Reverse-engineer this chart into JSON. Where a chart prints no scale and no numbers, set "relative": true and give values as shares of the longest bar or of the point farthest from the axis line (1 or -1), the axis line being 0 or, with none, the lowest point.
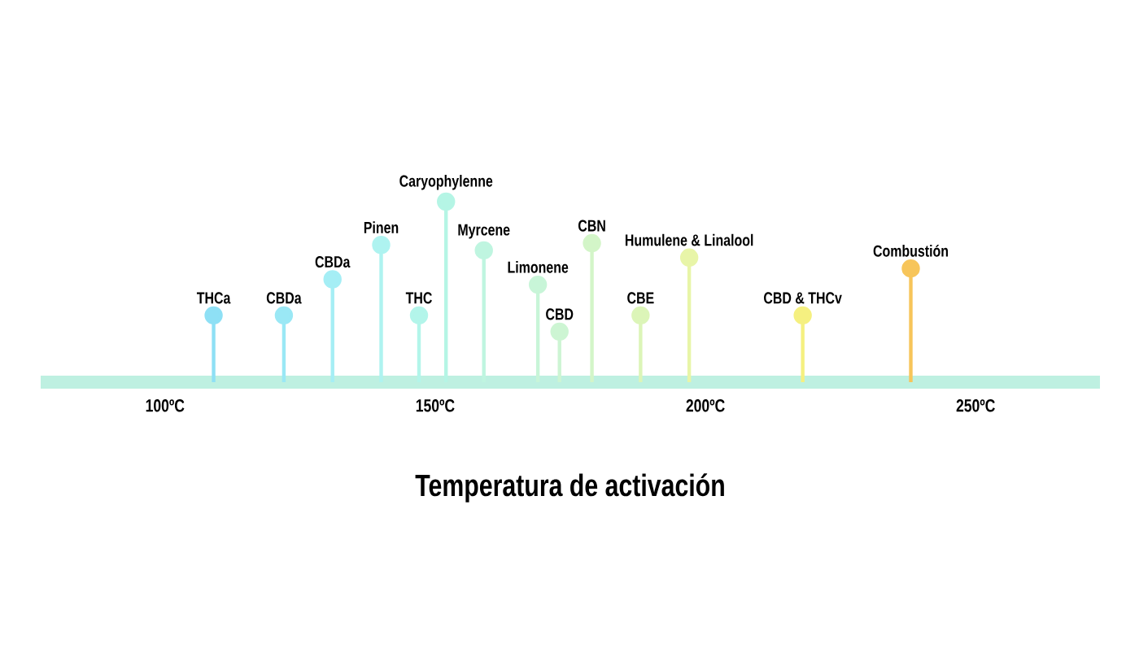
{
  "chart_data": {
    "type": "lollipop",
    "relative": true,
    "marker": "circle",
    "xlabel": "Temperatura de activación",
    "xlim": [
      77,
      273
    ],
    "xticks": [
      {
        "value": 100,
        "label": "100ºC"
      },
      {
        "value": 150,
        "label": "150ºC"
      },
      {
        "value": 200,
        "label": "200ºC"
      },
      {
        "value": 250,
        "label": "250ºC"
      }
    ],
    "x": [
      109,
      122,
      131,
      140,
      147,
      152,
      159,
      169,
      173,
      179,
      188,
      197,
      218,
      238
    ],
    "values": [
      0.37,
      0.37,
      0.57,
      0.76,
      0.37,
      1,
      0.73,
      0.54,
      0.28,
      0.77,
      0.37,
      0.69,
      0.37,
      0.63
    ],
    "colors": [
      "#8ee0f5",
      "#9ae8f5",
      "#a5eef5",
      "#aef3f0",
      "#b3f5ea",
      "#b5f5e5",
      "#bff5e0",
      "#c8f5d8",
      "#cdf5d3",
      "#d3f5c8",
      "#dcf5b8",
      "#e8f5a8",
      "#f5f080",
      "#f7c55a"
    ],
    "annotations": [
      {
        "text": "THCa",
        "x": 109,
        "y": 0.37
      },
      {
        "text": "CBDa",
        "x": 122,
        "y": 0.37
      },
      {
        "text": "CBDa",
        "x": 131,
        "y": 0.57
      },
      {
        "text": "Pinen",
        "x": 140,
        "y": 0.76
      },
      {
        "text": "THC",
        "x": 147,
        "y": 0.37
      },
      {
        "text": "Caryophylenne",
        "x": 152,
        "y": 1
      },
      {
        "text": "Myrcene",
        "x": 159,
        "y": 0.73
      },
      {
        "text": "Limonene",
        "x": 169,
        "y": 0.54
      },
      {
        "text": "CBD",
        "x": 173,
        "y": 0.28
      },
      {
        "text": "CBN",
        "x": 179,
        "y": 0.77
      },
      {
        "text": "CBE",
        "x": 188,
        "y": 0.37
      },
      {
        "text": "Humulene & Linalool",
        "x": 197,
        "y": 0.69
      },
      {
        "text": "CBD & THCv",
        "x": 218,
        "y": 0.37
      },
      {
        "text": "Combustión",
        "x": 238,
        "y": 0.63
      }
    ]
  }
}
